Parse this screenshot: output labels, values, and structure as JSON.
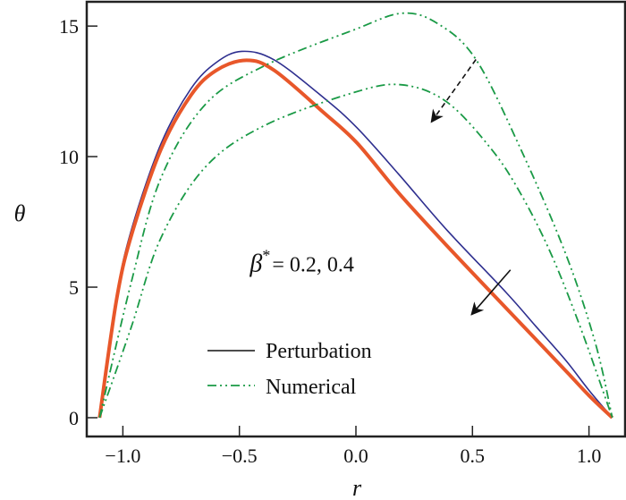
{
  "chart_data": {
    "type": "line",
    "title": "",
    "xlabel": "r",
    "ylabel": "θ",
    "xlim": [
      -1.155,
      1.155
    ],
    "ylim": [
      -0.72,
      15.93
    ],
    "xticks": [
      -1.0,
      -0.5,
      0.0,
      0.5,
      1.0
    ],
    "xtick_labels": [
      "−1.0",
      "−0.5",
      "0.0",
      "0.5",
      "1.0"
    ],
    "yticks": [
      0,
      5,
      10,
      15
    ],
    "ytick_labels": [
      "0",
      "5",
      "10",
      "15"
    ],
    "grid": false,
    "legend": {
      "placement": "bottom-center",
      "entries": [
        {
          "label": "Perturbation",
          "style": "solid",
          "color": "#111111"
        },
        {
          "label": "Numerical",
          "style": "dash-dot-dot",
          "color": "#1a9a46"
        }
      ]
    },
    "annotation_text": {
      "beta": "β",
      "sup": "*",
      "rest": "= 0.2, 0.4"
    },
    "annotation_anchor": {
      "x": -0.455,
      "y": 5.6
    },
    "arrows": [
      {
        "style": "solid",
        "from": {
          "x": 0.663,
          "y": 5.66
        },
        "to": {
          "x": 0.496,
          "y": 3.95
        }
      },
      {
        "style": "dashed",
        "from": {
          "x": 0.515,
          "y": 13.72
        },
        "to": {
          "x": 0.324,
          "y": 11.33
        }
      }
    ],
    "series": [
      {
        "group": "Perturbation",
        "beta": 0.2,
        "style": "solid",
        "color": "#2e2f8f",
        "x": [
          -1.1,
          -1.026,
          -0.96,
          -0.836,
          -0.708,
          -0.6,
          -0.49,
          -0.35,
          -0.135,
          0.005,
          0.184,
          0.389,
          0.644,
          0.772,
          0.9,
          1.0,
          1.1
        ],
        "y": [
          0,
          4.7,
          7.3,
          10.5,
          12.6,
          13.6,
          14.03,
          13.7,
          12.23,
          11.1,
          9.32,
          7.2,
          4.8,
          3.5,
          2.2,
          1.05,
          0
        ]
      },
      {
        "group": "Perturbation",
        "beta": 0.4,
        "style": "solid-thick",
        "color": "#e8572a",
        "x": [
          -1.1,
          -1.026,
          -0.96,
          -0.836,
          -0.708,
          -0.6,
          -0.47,
          -0.35,
          -0.135,
          0.005,
          0.184,
          0.389,
          0.644,
          0.772,
          0.9,
          1.0,
          1.1
        ],
        "y": [
          0,
          4.58,
          7.09,
          10.29,
          12.35,
          13.3,
          13.69,
          13.3,
          11.66,
          10.52,
          8.6,
          6.6,
          4.2,
          3.0,
          1.8,
          0.85,
          0
        ]
      },
      {
        "group": "Numerical",
        "beta": 0.2,
        "style": "dash-dot-dot",
        "color": "#1a9a46",
        "x": [
          -1.1,
          -0.965,
          -0.838,
          -0.646,
          -0.39,
          -0.007,
          0.197,
          0.35,
          0.515,
          0.707,
          0.899,
          1.027,
          1.1
        ],
        "y": [
          0,
          5.15,
          9.15,
          12.0,
          13.49,
          14.86,
          15.49,
          15.1,
          13.72,
          10.29,
          6.3,
          2.87,
          0
        ]
      },
      {
        "group": "Numerical",
        "beta": 0.4,
        "style": "dash-dot-dot",
        "color": "#1a9a46",
        "x": [
          -1.1,
          -0.965,
          -0.838,
          -0.646,
          -0.39,
          -0.007,
          0.197,
          0.389,
          0.58,
          0.707,
          0.836,
          0.964,
          1.1
        ],
        "y": [
          0,
          3.44,
          6.86,
          9.6,
          11.2,
          12.46,
          12.75,
          12.1,
          10.3,
          8.58,
          6.3,
          3.44,
          0
        ]
      }
    ]
  }
}
